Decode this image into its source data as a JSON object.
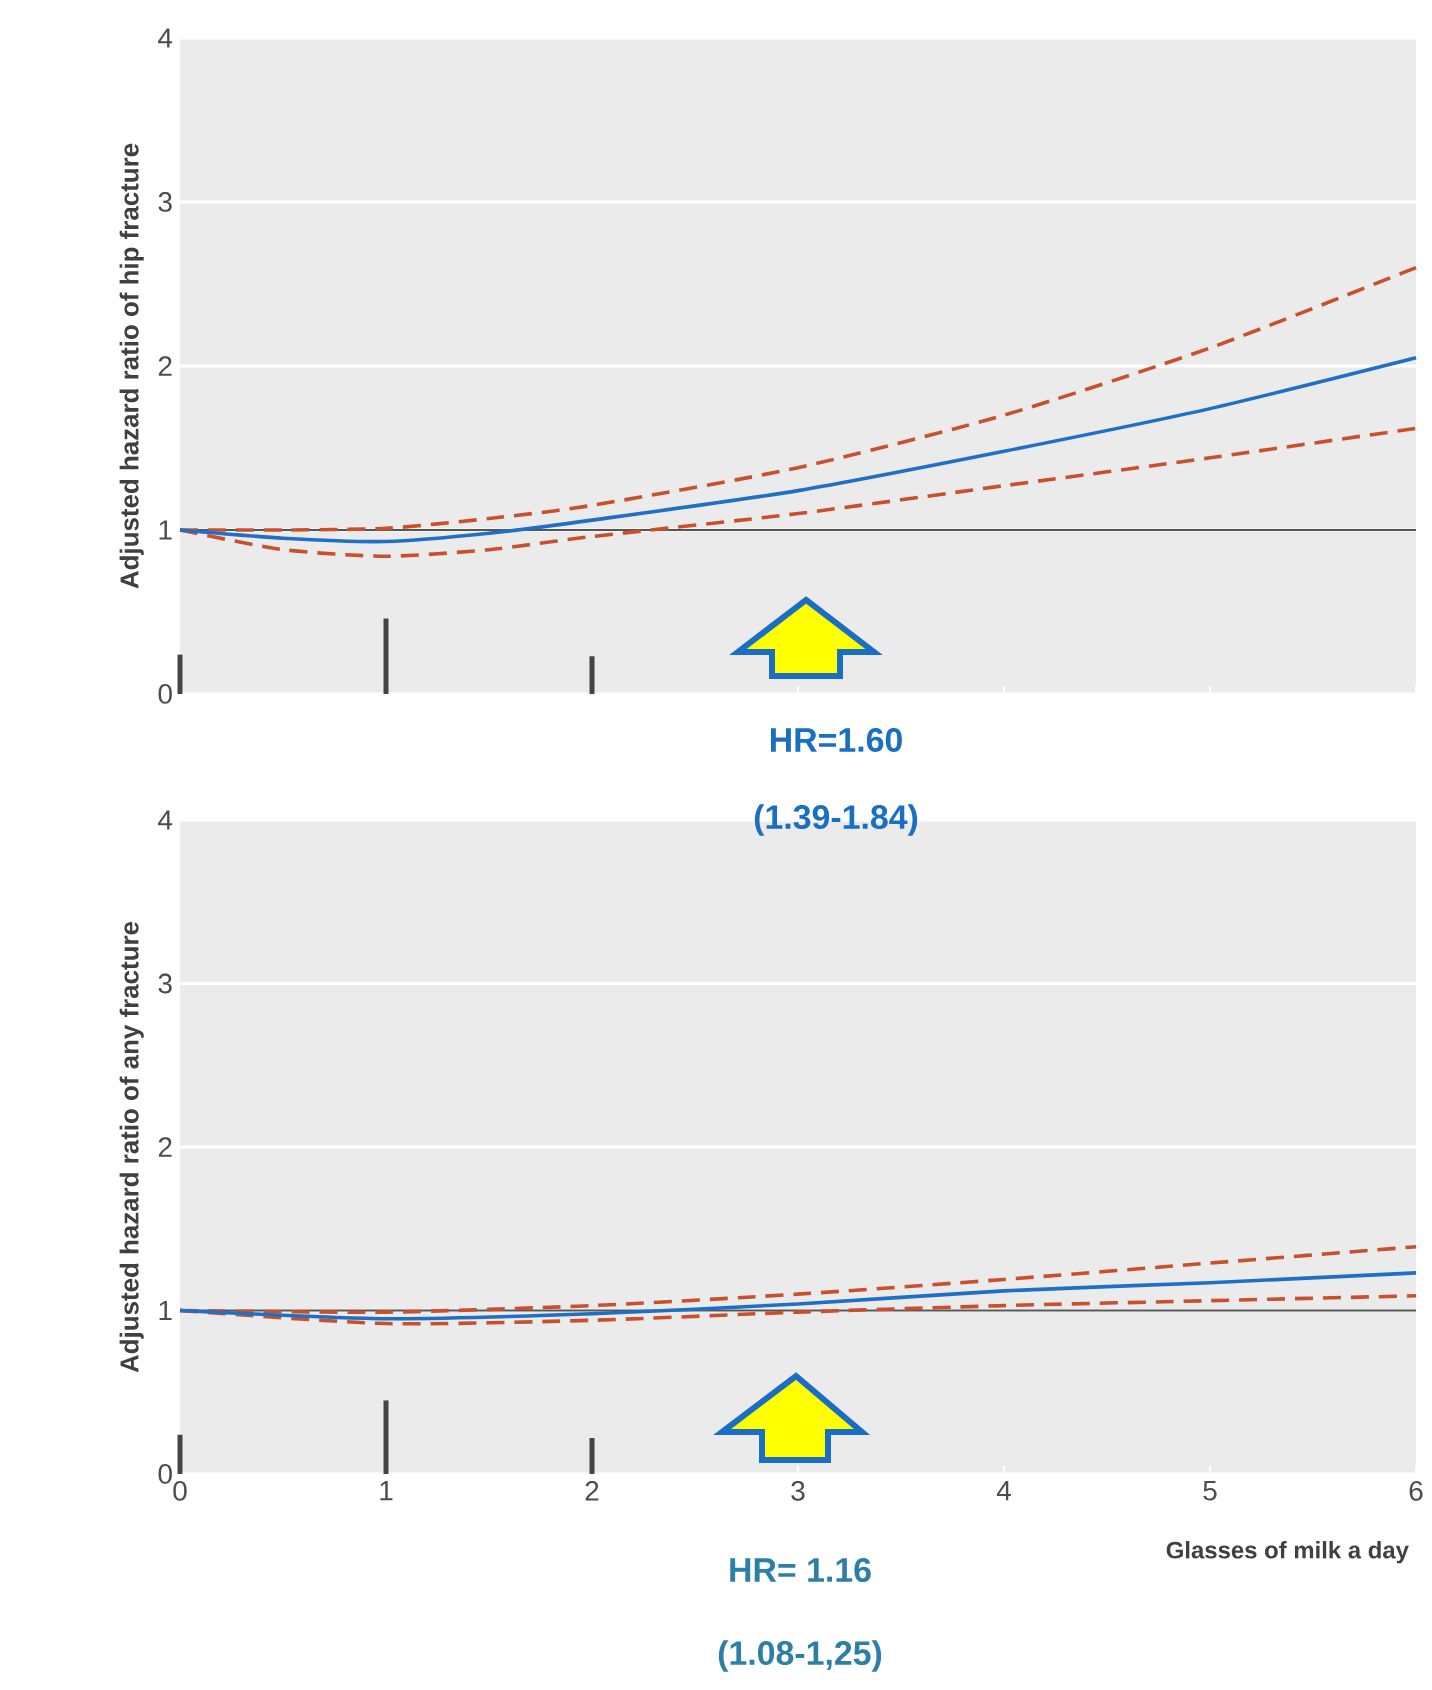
{
  "chart_data": [
    {
      "type": "line",
      "ylabel": "Adjusted hazard ratio of hip fracture",
      "xlim": [
        0,
        6
      ],
      "xticks": [
        0,
        1,
        2,
        3,
        4,
        5,
        6
      ],
      "ylim": [
        0,
        4
      ],
      "yticks": [
        0,
        1,
        2,
        3,
        4
      ],
      "grid": "y",
      "tick_labels": "y",
      "ref_lines": [
        {
          "axis": "y",
          "value": 1,
          "color": "#555555"
        }
      ],
      "annotations": [
        "HR=1.60",
        "(1.39-1.84)"
      ],
      "series": [
        {
          "type": "bar",
          "x": [
            0,
            1,
            2
          ],
          "values": [
            0.24,
            0.46,
            0.23
          ],
          "color": "#444444"
        },
        {
          "color": "#c8502d",
          "line_style": "dashed",
          "x": [
            0,
            0.5,
            1,
            1.5,
            2,
            3,
            4,
            5,
            6
          ],
          "values": [
            1.0,
            1.0,
            1.01,
            1.07,
            1.15,
            1.38,
            1.7,
            2.11,
            2.6
          ]
        },
        {
          "color": "#c8502d",
          "line_style": "dashed",
          "x": [
            0,
            0.5,
            1,
            1.5,
            2,
            3,
            4,
            5,
            6
          ],
          "values": [
            1.0,
            0.88,
            0.84,
            0.88,
            0.96,
            1.1,
            1.27,
            1.44,
            1.62
          ]
        },
        {
          "color": "#1f6fc5",
          "line_style": "solid",
          "x": [
            0,
            0.5,
            1,
            1.5,
            2,
            3,
            4,
            5,
            6
          ],
          "values": [
            1.0,
            0.95,
            0.93,
            0.98,
            1.06,
            1.24,
            1.48,
            1.74,
            2.05
          ]
        }
      ]
    },
    {
      "type": "line",
      "ylabel": "Adjusted hazard ratio of any fracture",
      "xlabel": "Glasses of milk a day",
      "xlim": [
        0,
        6
      ],
      "xticks": [
        0,
        1,
        2,
        3,
        4,
        5,
        6
      ],
      "ylim": [
        0,
        4
      ],
      "yticks": [
        0,
        1,
        2,
        3,
        4
      ],
      "grid": "y",
      "ref_lines": [
        {
          "axis": "y",
          "value": 1,
          "color": "#555555"
        }
      ],
      "annotations": [
        "HR= 1.16",
        "(1.08-1,25)"
      ],
      "series": [
        {
          "type": "bar",
          "x": [
            0,
            1,
            2
          ],
          "values": [
            0.24,
            0.45,
            0.22
          ],
          "color": "#444444"
        },
        {
          "color": "#c8502d",
          "line_style": "dashed",
          "x": [
            0,
            1,
            2,
            3,
            4,
            5,
            6
          ],
          "values": [
            1.0,
            0.99,
            1.03,
            1.1,
            1.19,
            1.29,
            1.39
          ]
        },
        {
          "color": "#c8502d",
          "line_style": "dashed",
          "x": [
            0,
            1,
            2,
            3,
            4,
            5,
            6
          ],
          "values": [
            1.0,
            0.92,
            0.94,
            0.99,
            1.03,
            1.06,
            1.09
          ]
        },
        {
          "color": "#1f6fc5",
          "line_style": "solid",
          "x": [
            0,
            1,
            2,
            3,
            4,
            5,
            6
          ],
          "values": [
            1.0,
            0.95,
            0.98,
            1.04,
            1.12,
            1.17,
            1.23
          ]
        }
      ]
    }
  ]
}
